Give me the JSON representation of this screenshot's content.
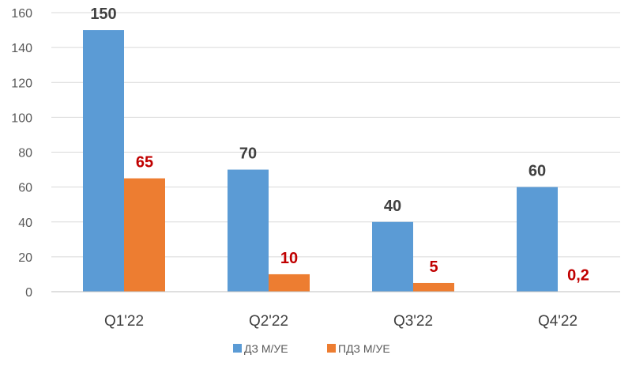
{
  "chart_data": {
    "type": "bar",
    "categories": [
      "Q1'22",
      "Q2'22",
      "Q3'22",
      "Q4'22"
    ],
    "series": [
      {
        "name": "ДЗ М/УЕ",
        "values": [
          150,
          70,
          40,
          60
        ],
        "labels": [
          "150",
          "70",
          "40",
          "60"
        ],
        "color": "#5b9bd5",
        "label_color": "#404040"
      },
      {
        "name": "ПДЗ М/УЕ",
        "values": [
          65,
          10,
          5,
          0.2
        ],
        "labels": [
          "65",
          "10",
          "5",
          "0,2"
        ],
        "color": "#ed7d31",
        "label_color": "#c00000"
      }
    ],
    "yticks": [
      "0",
      "20",
      "40",
      "60",
      "80",
      "100",
      "120",
      "140",
      "160"
    ],
    "ylim": [
      0,
      160
    ],
    "grid": true,
    "legend": "bottom",
    "title": "",
    "xlabel": "",
    "ylabel": ""
  }
}
